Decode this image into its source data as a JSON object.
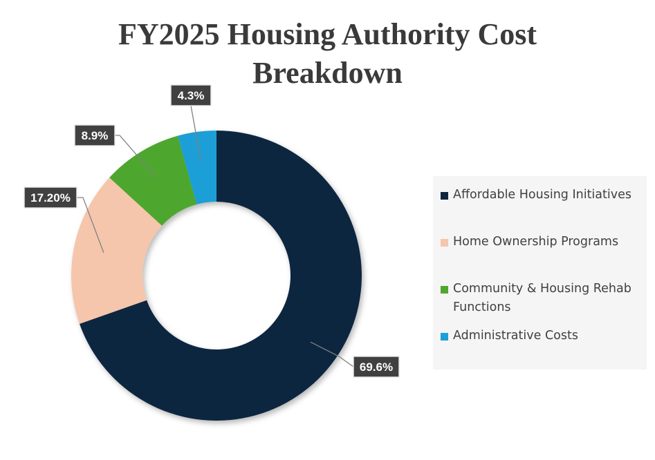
{
  "chart_data": {
    "type": "pie",
    "style": "donut",
    "title_lines": [
      "FY2025 Housing Authority Cost",
      "Breakdown"
    ],
    "categories": [
      "Affordable Housing Initiatives",
      "Home Ownership Programs",
      "Community & Housing Rehab Functions",
      "Administrative Costs"
    ],
    "values": [
      69.6,
      17.2,
      8.9,
      4.3
    ],
    "data_labels": [
      "69.6%",
      "17.20%",
      "8.9%",
      "4.3%"
    ],
    "colors": [
      "#0f2540",
      "#f5c6ac",
      "#4ea72e",
      "#1a9fd6"
    ],
    "legend_lines": [
      [
        "Affordable Housing Initiatives"
      ],
      [
        "Home Ownership Programs"
      ],
      [
        "Community & Housing Rehab",
        "Functions"
      ],
      [
        "Administrative Costs"
      ]
    ],
    "legend_position": "right",
    "start_angle_deg": 0,
    "direction": "clockwise"
  }
}
